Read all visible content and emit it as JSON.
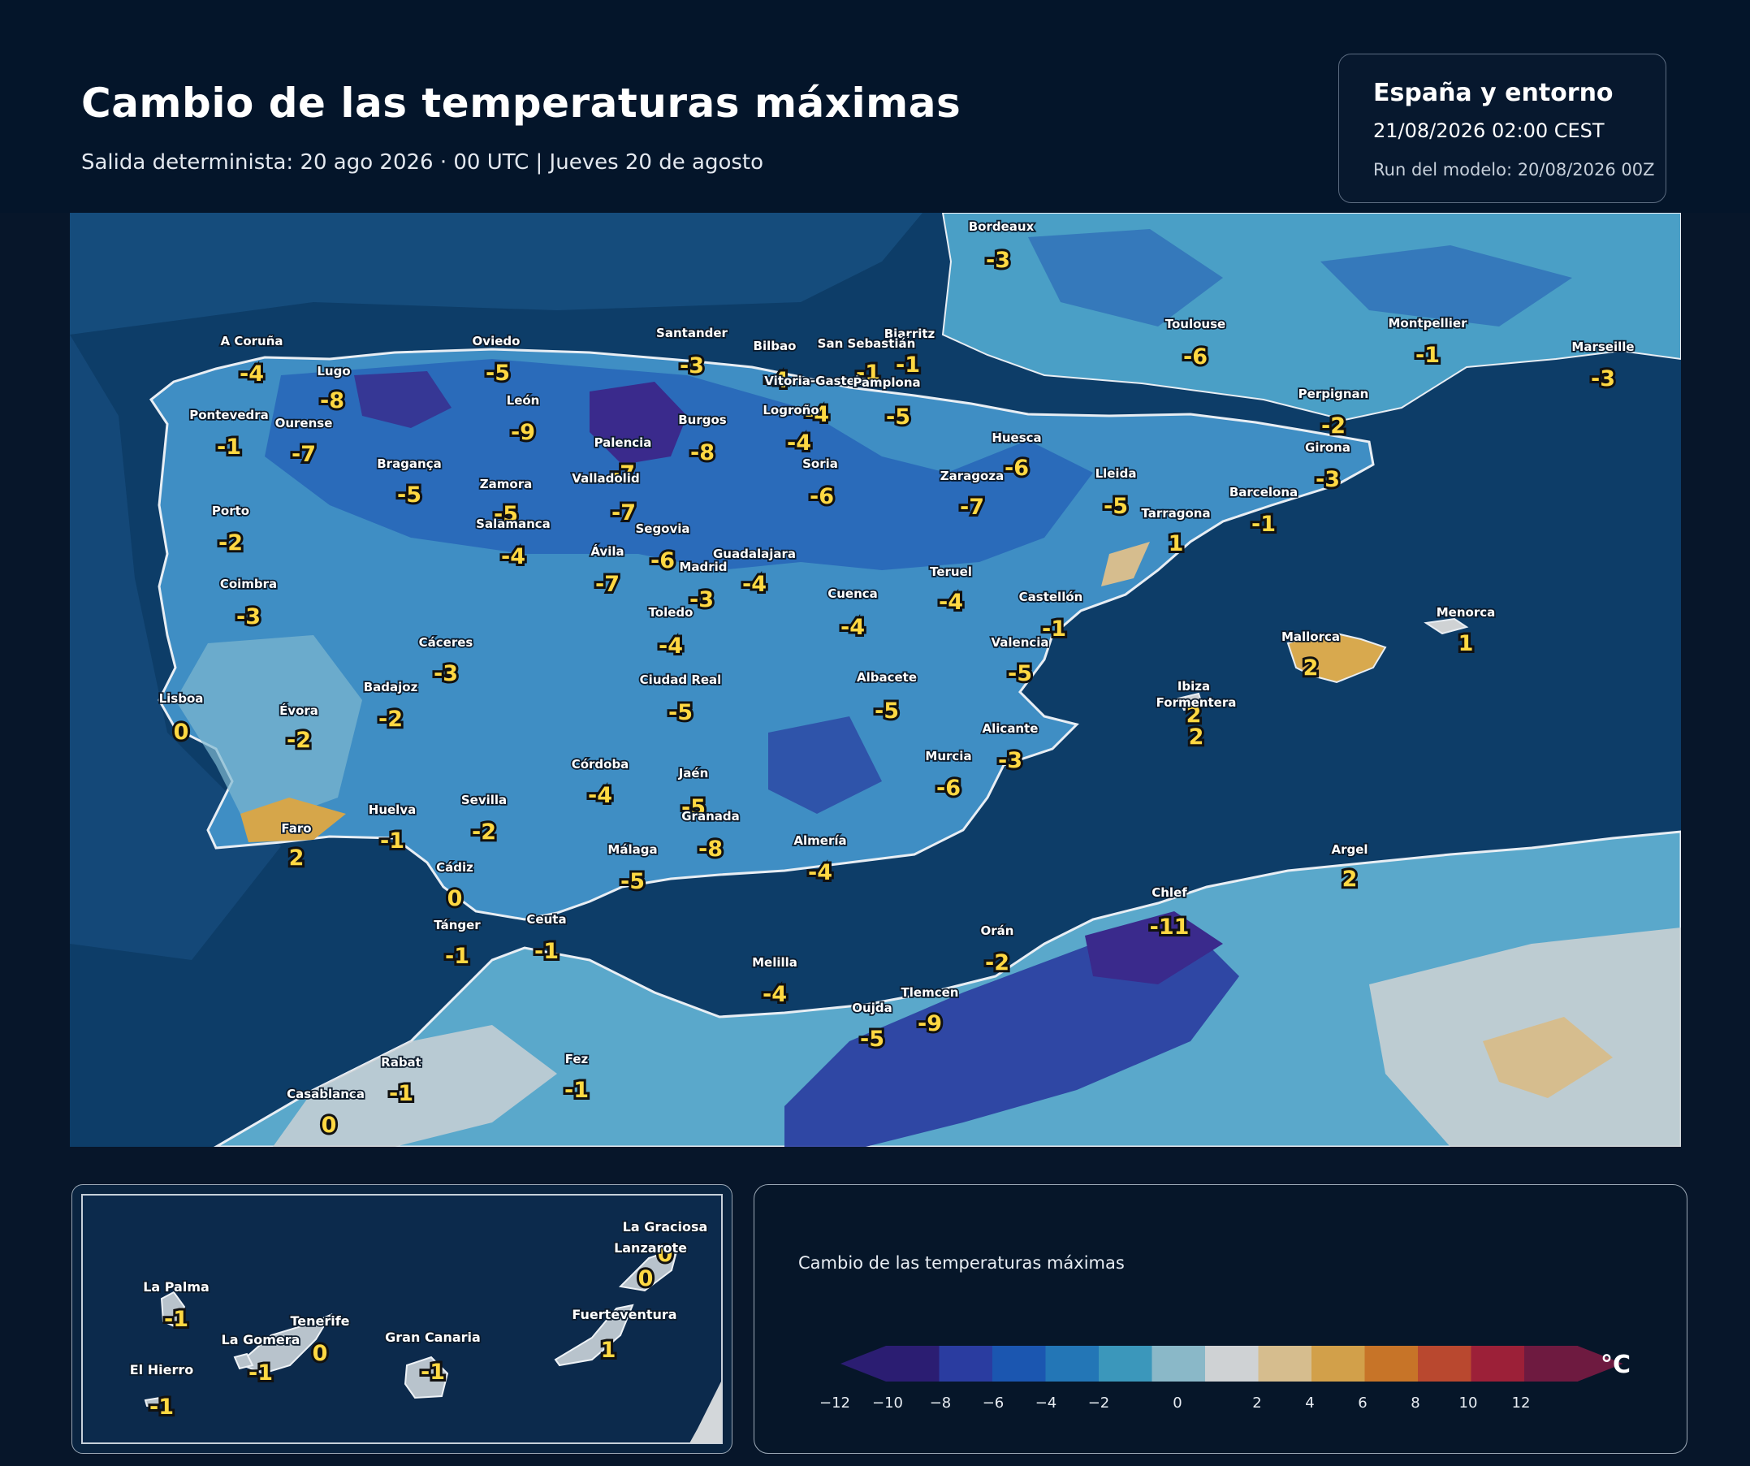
{
  "header": {
    "title": "Cambio de las temperaturas máximas",
    "subtitle": "Salida determinista: 20 ago 2026 · 00 UTC  |  Jueves 20 de agosto"
  },
  "info": {
    "region": "España y entorno",
    "valid_time": "21/08/2026  02:00 CEST",
    "model_run": "Run del modelo: 20/08/2026 00Z"
  },
  "map_labels": {
    "cities": [
      {
        "name": "Bordeaux",
        "value": "-3"
      },
      {
        "name": "A Coruña",
        "value": "-4"
      },
      {
        "name": "Lugo",
        "value": "-8"
      },
      {
        "name": "Oviedo",
        "value": "-5"
      },
      {
        "name": "Santander",
        "value": "-3"
      },
      {
        "name": "Bilbao",
        "value": "-4"
      },
      {
        "name": "Biarritz",
        "value": "-1"
      },
      {
        "name": "San Sebastián",
        "value": "-1"
      },
      {
        "name": "Vitoria-Gasteiz",
        "value": "-4"
      },
      {
        "name": "Pamplona",
        "value": "-5"
      },
      {
        "name": "Toulouse",
        "value": "-6"
      },
      {
        "name": "Montpellier",
        "value": "-1"
      },
      {
        "name": "Marseille",
        "value": "-3"
      },
      {
        "name": "Pontevedra",
        "value": "-1"
      },
      {
        "name": "Ourense",
        "value": "-7"
      },
      {
        "name": "León",
        "value": "-9"
      },
      {
        "name": "Burgos",
        "value": "-8"
      },
      {
        "name": "Logroño",
        "value": "-4"
      },
      {
        "name": "Perpignan",
        "value": "-2"
      },
      {
        "name": "Palencia",
        "value": "-7"
      },
      {
        "name": "Soria",
        "value": "-6"
      },
      {
        "name": "Huesca",
        "value": "-6"
      },
      {
        "name": "Girona",
        "value": "-3"
      },
      {
        "name": "Bragança",
        "value": "-5"
      },
      {
        "name": "Zamora",
        "value": "-5"
      },
      {
        "name": "Valladolid",
        "value": "-7"
      },
      {
        "name": "Zaragoza",
        "value": "-7"
      },
      {
        "name": "Lleida",
        "value": "-5"
      },
      {
        "name": "Barcelona",
        "value": "-1"
      },
      {
        "name": "Porto",
        "value": "-2"
      },
      {
        "name": "Salamanca",
        "value": "-4"
      },
      {
        "name": "Segovia",
        "value": "-6"
      },
      {
        "name": "Tarragona",
        "value": "1"
      },
      {
        "name": "Ávila",
        "value": "-7"
      },
      {
        "name": "Guadalajara",
        "value": "-4"
      },
      {
        "name": "Madrid",
        "value": "-3"
      },
      {
        "name": "Teruel",
        "value": "-4"
      },
      {
        "name": "Coimbra",
        "value": "-3"
      },
      {
        "name": "Cuenca",
        "value": "-4"
      },
      {
        "name": "Castellón",
        "value": "-1"
      },
      {
        "name": "Toledo",
        "value": "-4"
      },
      {
        "name": "Menorca",
        "value": "1"
      },
      {
        "name": "Cáceres",
        "value": "-3"
      },
      {
        "name": "Mallorca",
        "value": "2"
      },
      {
        "name": "Valencia",
        "value": "-5"
      },
      {
        "name": "Ciudad Real",
        "value": "-5"
      },
      {
        "name": "Albacete",
        "value": "-5"
      },
      {
        "name": "Badajoz",
        "value": "-2"
      },
      {
        "name": "Ibiza",
        "value": "2"
      },
      {
        "name": "Lisboa",
        "value": "0"
      },
      {
        "name": "Évora",
        "value": "-2"
      },
      {
        "name": "Formentera",
        "value": "2"
      },
      {
        "name": "Alicante",
        "value": "-3"
      },
      {
        "name": "Murcia",
        "value": "-6"
      },
      {
        "name": "Córdoba",
        "value": "-4"
      },
      {
        "name": "Jaén",
        "value": "-5"
      },
      {
        "name": "Sevilla",
        "value": "-2"
      },
      {
        "name": "Huelva",
        "value": "-1"
      },
      {
        "name": "Granada",
        "value": "-8"
      },
      {
        "name": "Faro",
        "value": "2"
      },
      {
        "name": "Almería",
        "value": "-4"
      },
      {
        "name": "Málaga",
        "value": "-5"
      },
      {
        "name": "Argel",
        "value": "2"
      },
      {
        "name": "Cádiz",
        "value": "0"
      },
      {
        "name": "Chlef",
        "value": "-11"
      },
      {
        "name": "Tánger",
        "value": "-1"
      },
      {
        "name": "Ceuta",
        "value": "-1"
      },
      {
        "name": "Orán",
        "value": "-2"
      },
      {
        "name": "Melilla",
        "value": "-4"
      },
      {
        "name": "Tlemcen",
        "value": "-9"
      },
      {
        "name": "Oujda",
        "value": "-5"
      },
      {
        "name": "Rabat",
        "value": "-1"
      },
      {
        "name": "Fez",
        "value": "-1"
      },
      {
        "name": "Casablanca",
        "value": "0"
      }
    ],
    "canarias": [
      {
        "name": "La Graciosa",
        "value": "0"
      },
      {
        "name": "Lanzarote",
        "value": "0"
      },
      {
        "name": "La Palma",
        "value": "-1"
      },
      {
        "name": "Fuerteventura",
        "value": "1"
      },
      {
        "name": "Tenerife",
        "value": "0"
      },
      {
        "name": "La Gomera",
        "value": "-1"
      },
      {
        "name": "Gran Canaria",
        "value": "-1"
      },
      {
        "name": "El Hierro",
        "value": "-1"
      }
    ]
  },
  "legend": {
    "title": "Cambio de las temperaturas máximas",
    "unit": "°C",
    "tick_labels": [
      "−12",
      "−10",
      "−8",
      "−6",
      "−4",
      "−2",
      "0",
      "2",
      "4",
      "6",
      "8",
      "10",
      "12"
    ],
    "colors": [
      "#2b1d72",
      "#2a3ca0",
      "#1b56b0",
      "#2376b6",
      "#3b97bb",
      "#8ab8c8",
      "#cfd2d4",
      "#d6bd8e",
      "#d2a04a",
      "#c77428",
      "#b9482f",
      "#9c2038",
      "#6e1a40"
    ],
    "min_color": "#2b1d72",
    "max_color": "#6e1a40"
  }
}
